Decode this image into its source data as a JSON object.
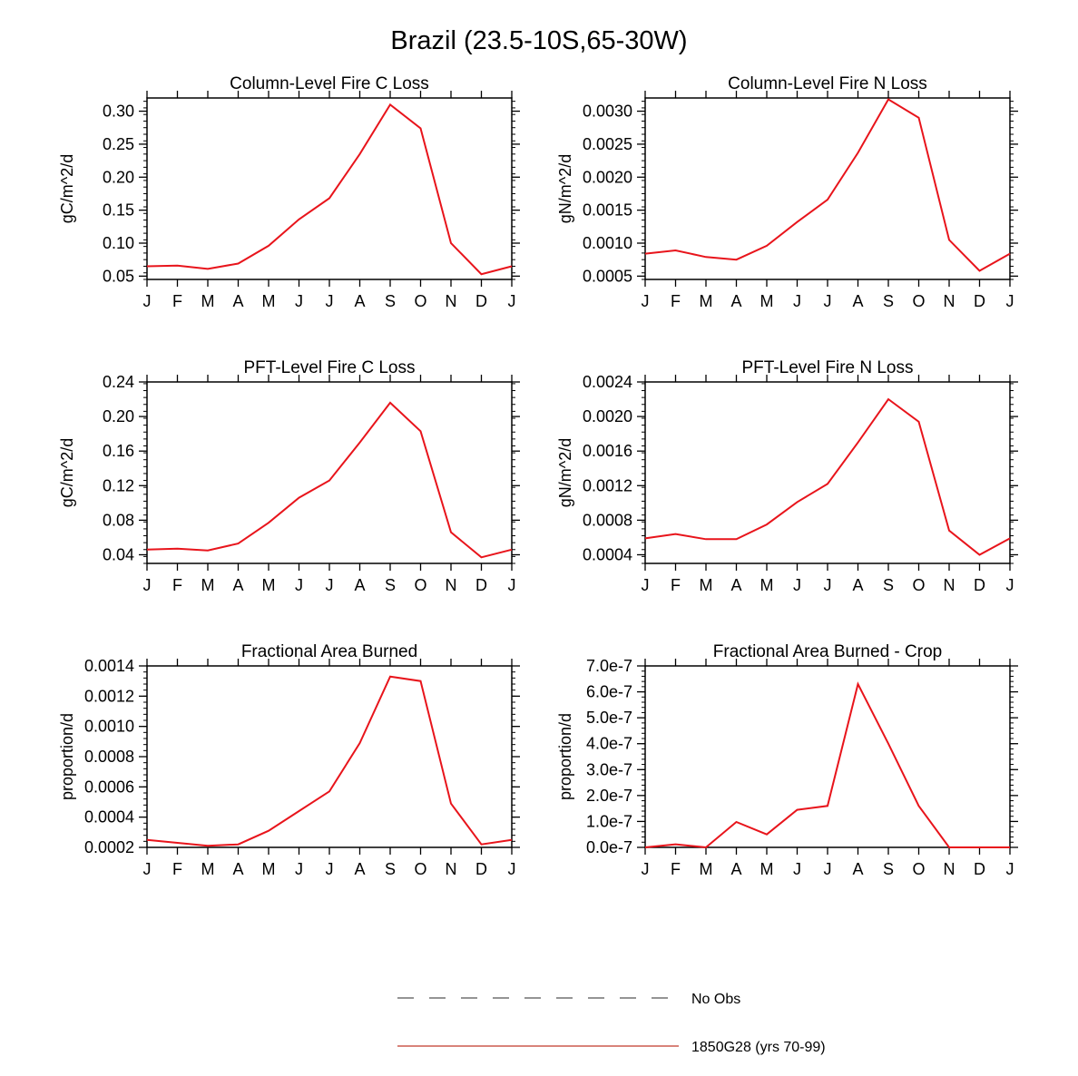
{
  "figure_title": "Brazil (23.5-10S,65-30W)",
  "month_labels": [
    "J",
    "F",
    "M",
    "A",
    "M",
    "J",
    "J",
    "A",
    "S",
    "O",
    "N",
    "D",
    "J"
  ],
  "legend": {
    "entries": [
      {
        "label": "No Obs",
        "style": "dashed",
        "color": "#555555"
      },
      {
        "label": "1850G28 (yrs 70-99)",
        "style": "solid",
        "color": "#c0392b"
      }
    ]
  },
  "colors": {
    "series": "#e8141b",
    "axis": "#000000"
  },
  "chart_data": [
    {
      "type": "line",
      "title": "Column-Level Fire C Loss",
      "ylabel": "gC/m^2/d",
      "ylim": [
        0.045,
        0.32
      ],
      "yticks": [
        "0.05",
        "0.10",
        "0.15",
        "0.20",
        "0.25",
        "0.30"
      ],
      "ytick_values": [
        0.05,
        0.1,
        0.15,
        0.2,
        0.25,
        0.3
      ],
      "series": [
        {
          "values": [
            0.065,
            0.066,
            0.061,
            0.069,
            0.096,
            0.136,
            0.168,
            0.235,
            0.31,
            0.274,
            0.1,
            0.053,
            0.065
          ]
        }
      ]
    },
    {
      "type": "line",
      "title": "Column-Level Fire N Loss",
      "ylabel": "gN/m^2/d",
      "ylim": [
        0.00045,
        0.0032
      ],
      "yticks": [
        "0.0005",
        "0.0010",
        "0.0015",
        "0.0020",
        "0.0025",
        "0.0030"
      ],
      "ytick_values": [
        0.0005,
        0.001,
        0.0015,
        0.002,
        0.0025,
        0.003
      ],
      "series": [
        {
          "values": [
            0.00084,
            0.00089,
            0.00079,
            0.00075,
            0.00096,
            0.00132,
            0.00166,
            0.00237,
            0.00318,
            0.0029,
            0.00105,
            0.00058,
            0.00084
          ]
        }
      ]
    },
    {
      "type": "line",
      "title": "PFT-Level Fire C Loss",
      "ylabel": "gC/m^2/d",
      "ylim": [
        0.03,
        0.24
      ],
      "yticks": [
        "0.04",
        "0.08",
        "0.12",
        "0.16",
        "0.20",
        "0.24"
      ],
      "ytick_values": [
        0.04,
        0.08,
        0.12,
        0.16,
        0.2,
        0.24
      ],
      "series": [
        {
          "values": [
            0.046,
            0.047,
            0.045,
            0.053,
            0.077,
            0.106,
            0.126,
            0.17,
            0.216,
            0.183,
            0.066,
            0.037,
            0.046
          ]
        }
      ]
    },
    {
      "type": "line",
      "title": "PFT-Level Fire N Loss",
      "ylabel": "gN/m^2/d",
      "ylim": [
        0.0003,
        0.0024
      ],
      "yticks": [
        "0.0004",
        "0.0008",
        "0.0012",
        "0.0016",
        "0.0020",
        "0.0024"
      ],
      "ytick_values": [
        0.0004,
        0.0008,
        0.0012,
        0.0016,
        0.002,
        0.0024
      ],
      "series": [
        {
          "values": [
            0.00059,
            0.00064,
            0.00058,
            0.00058,
            0.00075,
            0.00101,
            0.00122,
            0.0017,
            0.0022,
            0.00194,
            0.00068,
            0.0004,
            0.00059
          ]
        }
      ]
    },
    {
      "type": "line",
      "title": "Fractional Area Burned",
      "ylabel": "proportion/d",
      "ylim": [
        0.0002,
        0.0014
      ],
      "yticks": [
        "0.0002",
        "0.0004",
        "0.0006",
        "0.0008",
        "0.0010",
        "0.0012",
        "0.0014"
      ],
      "ytick_values": [
        0.0002,
        0.0004,
        0.0006,
        0.0008,
        0.001,
        0.0012,
        0.0014
      ],
      "series": [
        {
          "values": [
            0.00025,
            0.00023,
            0.00021,
            0.00022,
            0.00031,
            0.00044,
            0.00057,
            0.00089,
            0.00133,
            0.0013,
            0.00049,
            0.00022,
            0.00025
          ]
        }
      ]
    },
    {
      "type": "line",
      "title": "Fractional Area Burned - Crop",
      "ylabel": "proportion/d",
      "ylim": [
        0,
        7e-07
      ],
      "yticks": [
        "0.0e-7",
        "1.0e-7",
        "2.0e-7",
        "3.0e-7",
        "4.0e-7",
        "5.0e-7",
        "6.0e-7",
        "7.0e-7"
      ],
      "ytick_values": [
        0,
        1e-07,
        2e-07,
        3e-07,
        4e-07,
        5e-07,
        6e-07,
        7e-07
      ],
      "series": [
        {
          "values": [
            0.0,
            1.2e-08,
            0.0,
            9.8e-08,
            5e-08,
            1.45e-07,
            1.6e-07,
            6.3e-07,
            4e-07,
            1.6e-07,
            0.0,
            0.0,
            0.0
          ]
        }
      ]
    }
  ]
}
